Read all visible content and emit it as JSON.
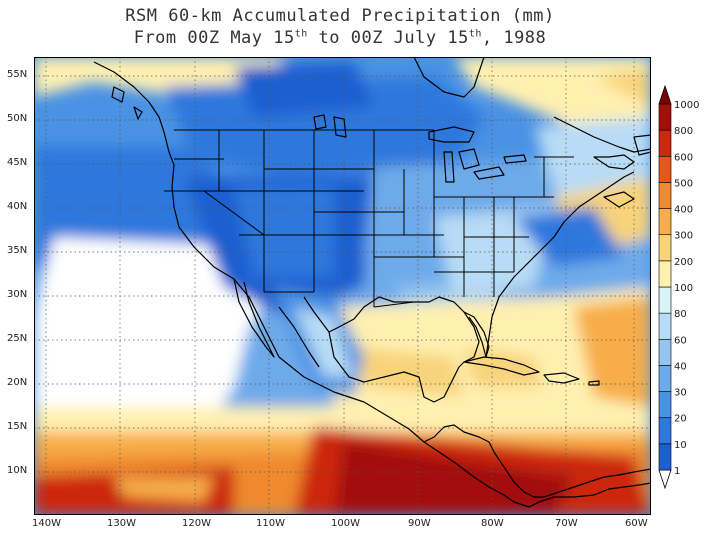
{
  "title": {
    "line1": "RSM 60-km Accumulated Precipitation (mm)",
    "line2_a": "From 00Z May 15",
    "line2_sup1": "th",
    "line2_b": " to 00Z July 15",
    "line2_sup2": "th",
    "line2_c": ", 1988"
  },
  "axes": {
    "lat_labels": [
      "55N",
      "50N",
      "45N",
      "40N",
      "35N",
      "30N",
      "25N",
      "20N",
      "15N",
      "10N"
    ],
    "lon_labels": [
      "140W",
      "130W",
      "120W",
      "110W",
      "100W",
      "90W",
      "80W",
      "70W",
      "60W"
    ],
    "grid": "dotted"
  },
  "colorbar": {
    "levels": [
      "1",
      "10",
      "20",
      "30",
      "40",
      "60",
      "80",
      "100",
      "200",
      "300",
      "400",
      "500",
      "600",
      "800",
      "1000"
    ],
    "colors": [
      "#ffffff",
      "#1e5fd0",
      "#2f78dd",
      "#4a92e4",
      "#6eaaea",
      "#94c4f0",
      "#b8dcf5",
      "#d8f2fa",
      "#fff0b0",
      "#f8d37a",
      "#f7ad4a",
      "#ef8a2f",
      "#e4581c",
      "#cc2810",
      "#a30f08",
      "#7a0404"
    ]
  }
}
